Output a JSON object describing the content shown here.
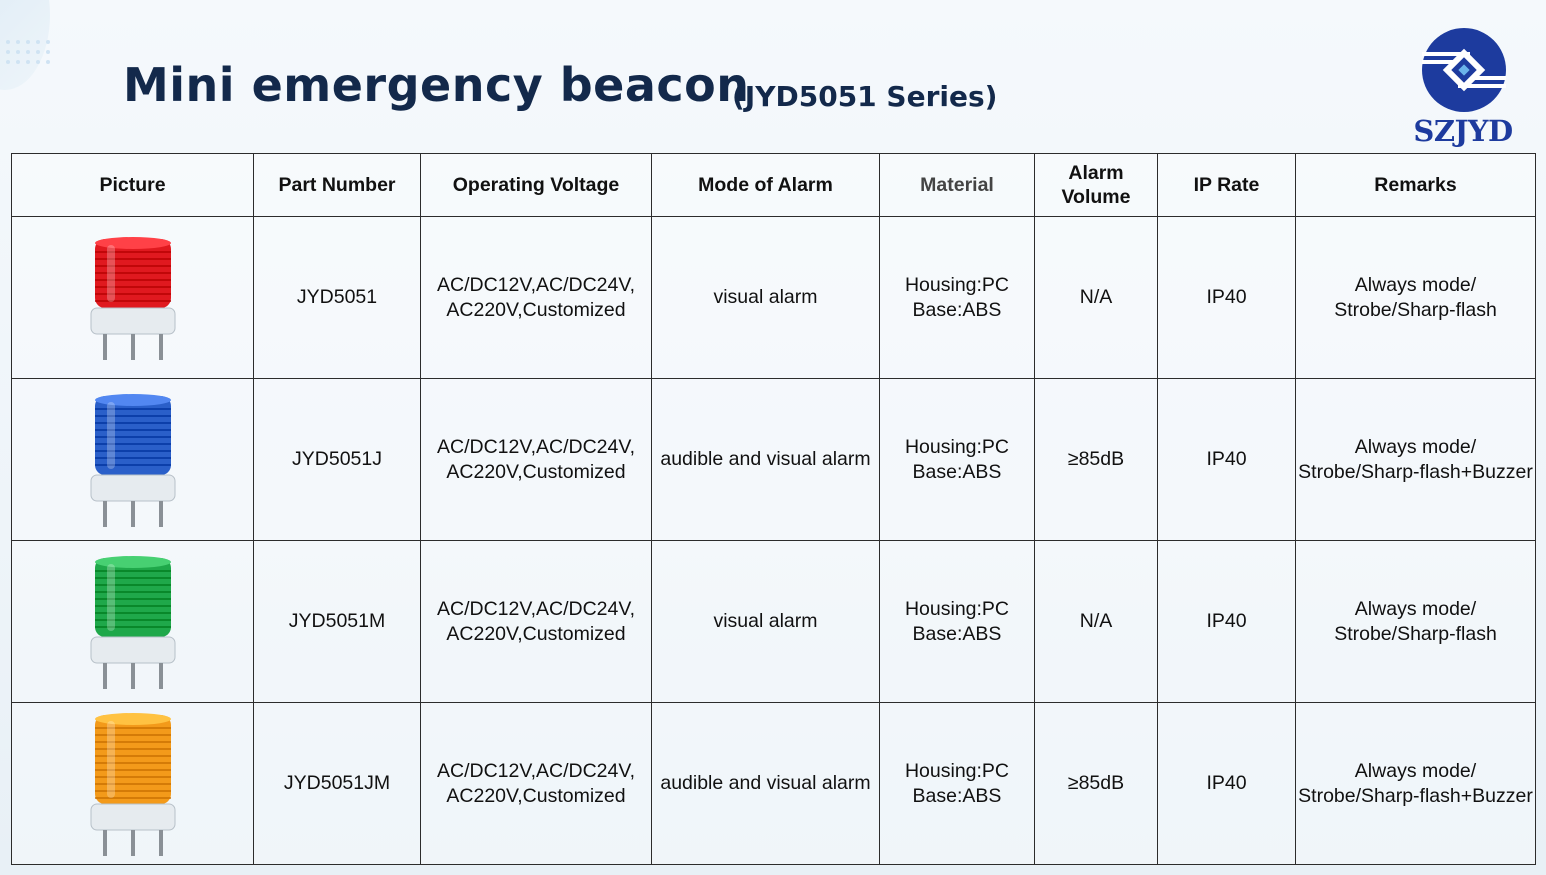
{
  "title": "Mini emergency beacon",
  "subtitle": "(JYD5051 Series)",
  "logo": {
    "text": "SZJYD",
    "color": "#1d3b9e"
  },
  "table": {
    "headers": {
      "picture": "Picture",
      "part_number": "Part Number",
      "operating_voltage": "Operating Voltage",
      "mode_of_alarm": "Mode of Alarm",
      "material": "Material",
      "alarm_volume": "Alarm Volume",
      "ip_rate": "IP Rate",
      "remarks": "Remarks"
    },
    "rows": [
      {
        "color_name": "red",
        "color": "#e0191f",
        "part_number": "JYD5051",
        "voltage": "AC/DC12V,AC/DC24V, AC220V,Customized",
        "mode": "visual alarm",
        "material": "Housing:PC Base:ABS",
        "volume": "N/A",
        "ip_rate": "IP40",
        "remarks": "Always mode/ Strobe/Sharp-flash"
      },
      {
        "color_name": "blue",
        "color": "#2a5fc9",
        "part_number": "JYD5051J",
        "voltage": "AC/DC12V,AC/DC24V, AC220V,Customized",
        "mode": "audible and visual alarm",
        "material": "Housing:PC Base:ABS",
        "volume": "≥85dB",
        "ip_rate": "IP40",
        "remarks": "Always mode/ Strobe/Sharp-flash+Buzzer"
      },
      {
        "color_name": "green",
        "color": "#1fa84a",
        "part_number": "JYD5051M",
        "voltage": "AC/DC12V,AC/DC24V, AC220V,Customized",
        "mode": "visual alarm",
        "material": "Housing:PC Base:ABS",
        "volume": "N/A",
        "ip_rate": "IP40",
        "remarks": "Always mode/ Strobe/Sharp-flash"
      },
      {
        "color_name": "orange",
        "color": "#f39a1a",
        "part_number": "JYD5051JM",
        "voltage": "AC/DC12V,AC/DC24V, AC220V,Customized",
        "mode": "audible and visual alarm",
        "material": "Housing:PC Base:ABS",
        "volume": "≥85dB",
        "ip_rate": "IP40",
        "remarks": "Always mode/ Strobe/Sharp-flash+Buzzer"
      }
    ]
  }
}
